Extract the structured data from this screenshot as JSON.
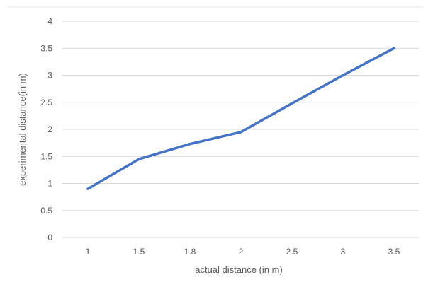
{
  "chart_data": {
    "type": "line",
    "categories": [
      "1",
      "1.5",
      "1.8",
      "2",
      "2.5",
      "3",
      "3.5"
    ],
    "series": [
      {
        "values": [
          0.9,
          1.45,
          1.73,
          1.95,
          2.48,
          3.0,
          3.5
        ]
      }
    ],
    "title": "",
    "xlabel": "actual distance (in m)",
    "ylabel": "experimental distance(in m)",
    "ylim": [
      0,
      4
    ],
    "yticks": [
      "0",
      "0.5",
      "1",
      "1.5",
      "2",
      "2.5",
      "3",
      "3.5",
      "4"
    ],
    "grid": true,
    "legend": "none",
    "colors": {
      "line": "#4472C4",
      "grid": "#D9D9D9",
      "text": "#595959"
    }
  }
}
